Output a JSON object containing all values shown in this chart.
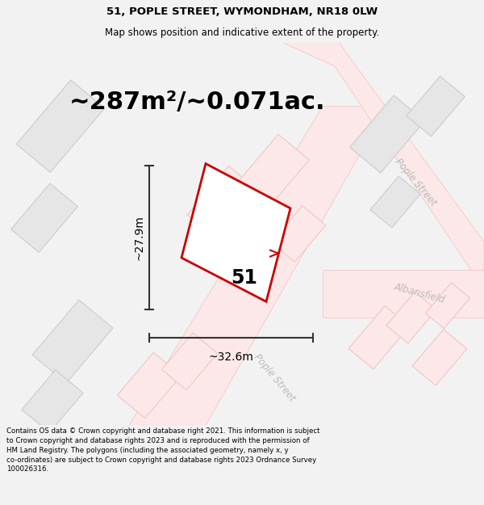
{
  "title_line1": "51, POPLE STREET, WYMONDHAM, NR18 0LW",
  "title_line2": "Map shows position and indicative extent of the property.",
  "area_text": "~287m²/~0.071ac.",
  "label_number": "51",
  "dim_width": "~32.6m",
  "dim_height": "~27.9m",
  "bg_color": "#f2f2f2",
  "footer_text": "Contains OS data © Crown copyright and database right 2021. This information is subject to Crown copyright and database rights 2023 and is reproduced with the permission of HM Land Registry. The polygons (including the associated geometry, namely x, y co-ordinates) are subject to Crown copyright and database rights 2023 Ordnance Survey 100026316.",
  "map_bg": "#ffffff",
  "plot_color": "#cc0000",
  "road_label_color": "#bbbbbb",
  "building_fill": "#e6e6e6",
  "building_stroke": "#cccccc",
  "road_fill": "#fce8e8",
  "road_stroke": "#f0c0c0",
  "dim_color": "#333333",
  "title_fontsize": 9.5,
  "subtitle_fontsize": 8.5,
  "area_fontsize": 22,
  "label_fontsize": 17,
  "dim_fontsize": 10,
  "road_label_fontsize": 8.5,
  "footer_fontsize": 6.2
}
